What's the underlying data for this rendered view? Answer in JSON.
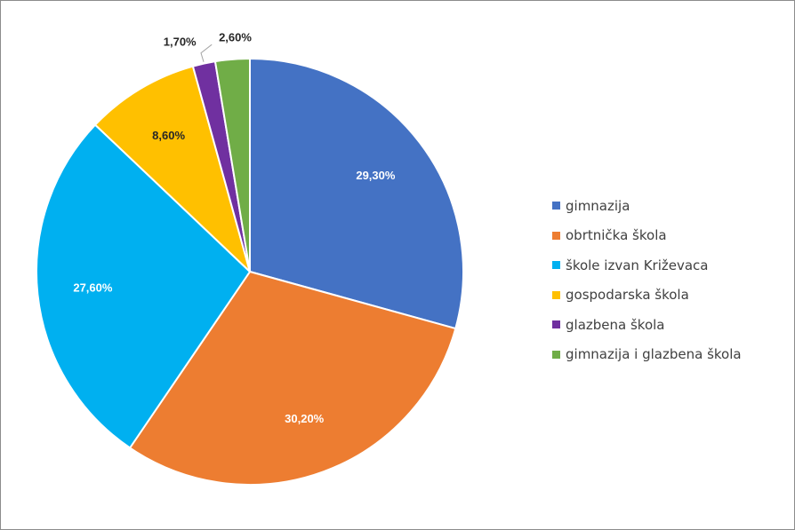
{
  "chart_data": {
    "type": "pie",
    "title": "",
    "categories": [
      "gimnazija",
      "obrtnička škola",
      "škole izvan Križevaca",
      "gospodarska škola",
      "glazbena škola",
      "gimnazija i glazbena škola"
    ],
    "values": [
      29.3,
      30.2,
      27.6,
      8.6,
      1.7,
      2.6
    ],
    "labels": [
      "29,30%",
      "30,20%",
      "27,60%",
      "8,60%",
      "1,70%",
      "2,60%"
    ],
    "colors": [
      "#4472c4",
      "#ed7d31",
      "#00b0f0",
      "#ffc000",
      "#7030a0",
      "#70ad47"
    ],
    "label_colors": [
      "#ffffff",
      "#ffffff",
      "#ffffff",
      "#262626",
      "#262626",
      "#262626"
    ],
    "legend_position": "right",
    "start_angle": "top",
    "direction": "clockwise"
  }
}
